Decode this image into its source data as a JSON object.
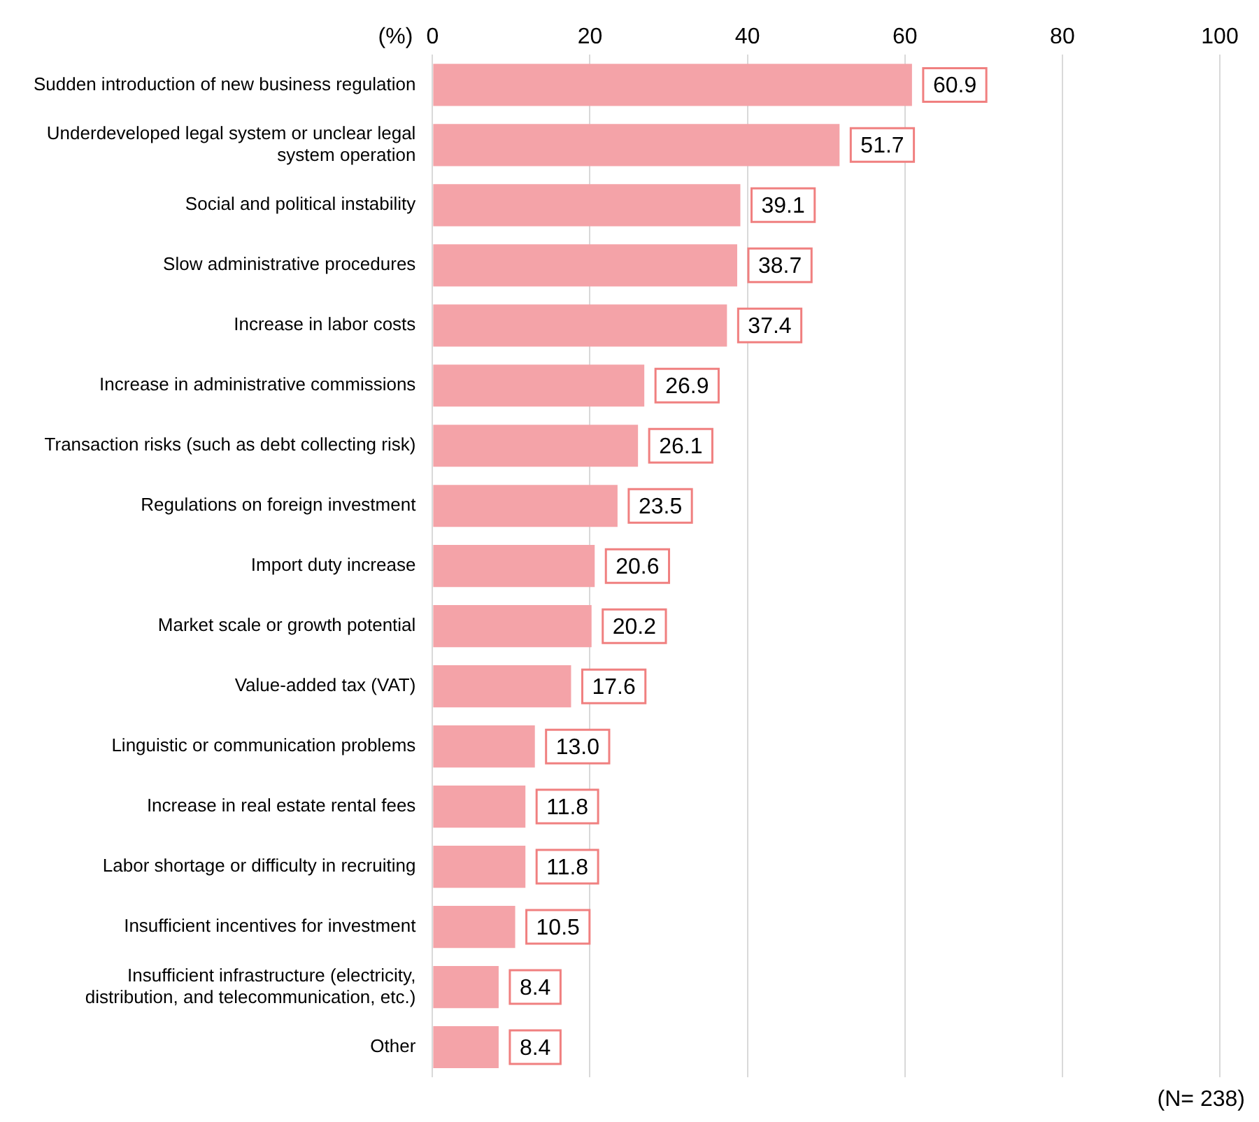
{
  "chart_data": {
    "type": "bar",
    "orientation": "horizontal",
    "xlabel": "(%)",
    "annotations": [
      "(N= 238)"
    ],
    "categories": [
      "Sudden introduction of new business regulation",
      "Underdeveloped legal system or unclear legal system operation",
      "Social and political instability",
      "Slow administrative procedures",
      "Increase in labor costs",
      "Increase in administrative commissions",
      "Transaction risks (such as debt collecting risk)",
      "Regulations on foreign investment",
      "Import duty increase",
      "Market scale or growth potential",
      "Value-added tax (VAT)",
      "Linguistic or communication problems",
      "Increase in real estate rental fees",
      "Labor shortage or difficulty in recruiting",
      "Insufficient incentives for investment",
      "Insufficient infrastructure (electricity, distribution, and telecommunication, etc.)",
      "Other"
    ],
    "values": [
      60.9,
      51.7,
      39.1,
      38.7,
      37.4,
      26.9,
      26.1,
      23.5,
      20.6,
      20.2,
      17.6,
      13.0,
      11.8,
      11.8,
      10.5,
      8.4,
      8.4
    ],
    "color": "#f4a3a8",
    "xlim": [
      0,
      100
    ],
    "xticks": [
      0,
      20,
      40,
      60,
      80,
      100
    ],
    "grid": "x",
    "value_labels": [
      "60.9",
      "51.7",
      "39.1",
      "38.7",
      "37.4",
      "26.9",
      "26.1",
      "23.5",
      "20.6",
      "20.2",
      "17.6",
      "13.0",
      "11.8",
      "11.8",
      "10.5",
      "8.4",
      "8.4"
    ],
    "legend": false
  }
}
